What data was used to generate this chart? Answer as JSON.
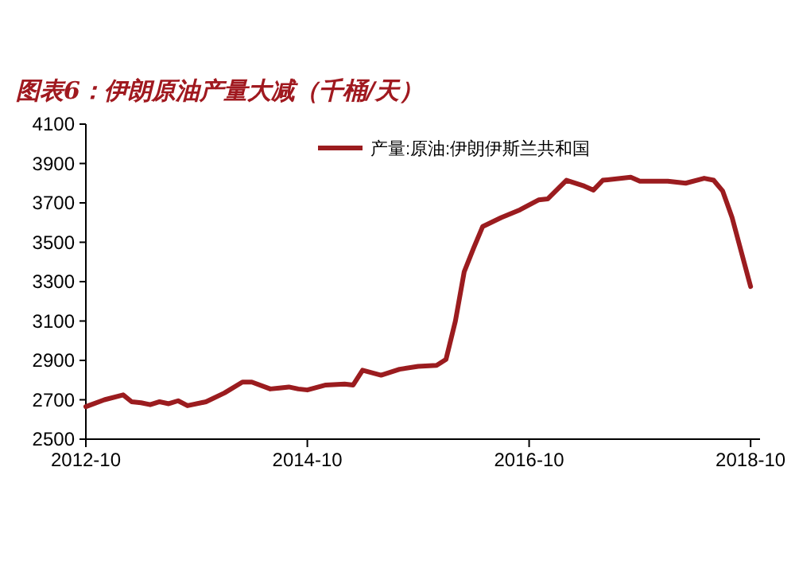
{
  "chart_data": {
    "type": "line",
    "title": "图表6：伊朗原油产量大减（千桶/天）",
    "x": [
      "2012-10",
      "2012-12",
      "2013-02",
      "2013-03",
      "2013-04",
      "2013-05",
      "2013-06",
      "2013-07",
      "2013-08",
      "2013-09",
      "2013-11",
      "2014-01",
      "2014-03",
      "2014-04",
      "2014-06",
      "2014-07",
      "2014-08",
      "2014-09",
      "2014-10",
      "2014-12",
      "2015-02",
      "2015-03",
      "2015-04",
      "2015-06",
      "2015-08",
      "2015-10",
      "2015-12",
      "2016-01",
      "2016-02",
      "2016-03",
      "2016-04",
      "2016-05",
      "2016-07",
      "2016-09",
      "2016-11",
      "2016-12",
      "2017-02",
      "2017-04",
      "2017-05",
      "2017-06",
      "2017-09",
      "2017-10",
      "2018-01",
      "2018-03",
      "2018-05",
      "2018-06",
      "2018-07",
      "2018-08",
      "2018-10"
    ],
    "series": [
      {
        "name": "产量:原油:伊朗伊斯兰共和国",
        "color": "#9b1c1f",
        "values": [
          2665,
          2700,
          2725,
          2690,
          2685,
          2675,
          2690,
          2680,
          2695,
          2670,
          2690,
          2735,
          2790,
          2790,
          2755,
          2760,
          2765,
          2755,
          2750,
          2775,
          2780,
          2775,
          2850,
          2825,
          2855,
          2870,
          2875,
          2905,
          3100,
          3350,
          3470,
          3580,
          3625,
          3665,
          3715,
          3720,
          3815,
          3785,
          3765,
          3815,
          3830,
          3810,
          3810,
          3800,
          3825,
          3815,
          3760,
          3625,
          3275
        ]
      }
    ],
    "xlim": [
      "2012-10",
      "2018-11"
    ],
    "xticks": [
      {
        "value": "2012-10",
        "label": "2012-10"
      },
      {
        "value": "2014-10",
        "label": "2014-10"
      },
      {
        "value": "2016-10",
        "label": "2016-10"
      },
      {
        "value": "2018-10",
        "label": "2018-10"
      }
    ],
    "ylim": [
      2500,
      4100
    ],
    "yticks": [
      2500,
      2700,
      2900,
      3100,
      3300,
      3500,
      3700,
      3900,
      4100
    ],
    "grid": false,
    "legend": "top",
    "marker": "none",
    "line_style": "solid"
  }
}
